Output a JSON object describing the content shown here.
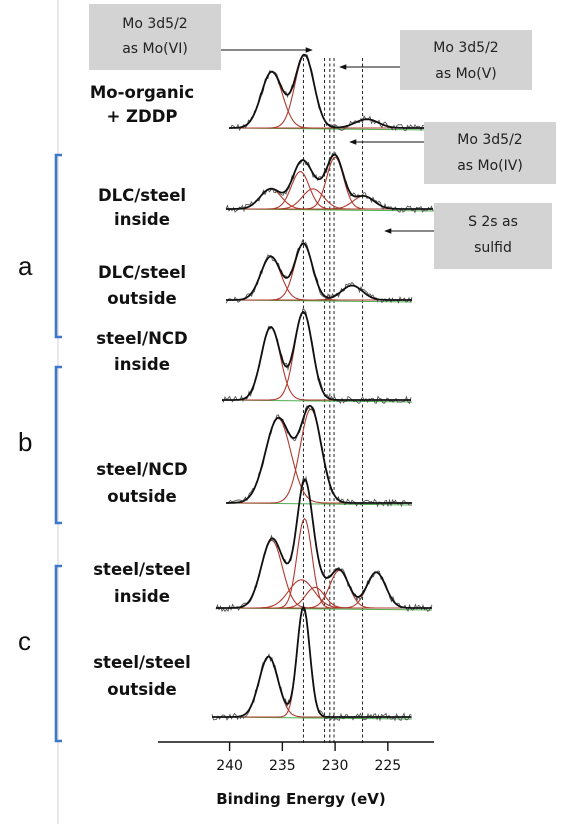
{
  "chart_data": {
    "type": "line",
    "title": "",
    "xlabel": "Binding Energy (eV)",
    "ylabel": "",
    "xlim": [
      245,
      223
    ],
    "x_reversed": true,
    "x_ticks": [
      240,
      235,
      230,
      225
    ],
    "x_tick_labels": [
      "240",
      "235",
      "230",
      "225"
    ],
    "grid": false,
    "colors": {
      "measured": "#111111",
      "component": "#b03a2e",
      "baseline": "#4caf50",
      "bracket": "#3d78c9",
      "annotation_box": "#d3d3d3"
    },
    "reference_lines": [
      233.0,
      231.0,
      230.5,
      230.1,
      227.4
    ],
    "annotations": [
      {
        "lines": [
          "Mo 3d5/2",
          "as Mo(VI)"
        ],
        "points_to": 233.0
      },
      {
        "lines": [
          "Mo 3d5/2",
          "as Mo(V)"
        ],
        "points_to": 230.5
      },
      {
        "lines": [
          "Mo 3d5/2",
          "as Mo(IV)"
        ],
        "points_to": 230.1
      },
      {
        "lines": [
          "S 2s as",
          "sulfid"
        ],
        "points_to": 227.4
      }
    ],
    "groups": [
      {
        "label": "a",
        "spectra": [
          1,
          2
        ]
      },
      {
        "label": "b",
        "spectra": [
          3,
          4
        ]
      },
      {
        "label": "c",
        "spectra": [
          5,
          6
        ]
      }
    ],
    "spectra": [
      {
        "lines": [
          "Mo-organic",
          "+ ZDDP"
        ],
        "peaks": [
          [
            236.0,
            0.77,
            1.0
          ],
          [
            232.9,
            1.0,
            0.9
          ],
          [
            227.0,
            0.12,
            1.1
          ]
        ]
      },
      {
        "lines": [
          "DLC/steel",
          "inside"
        ],
        "peaks": [
          [
            236.1,
            0.28,
            1.0
          ],
          [
            233.3,
            0.52,
            0.85
          ],
          [
            232.1,
            0.28,
            1.0
          ],
          [
            230.0,
            0.72,
            0.8
          ],
          [
            227.3,
            0.18,
            1.0
          ]
        ]
      },
      {
        "lines": [
          "DLC/steel",
          "outside"
        ],
        "peaks": [
          [
            236.1,
            0.75,
            0.95
          ],
          [
            233.0,
            0.97,
            0.85
          ],
          [
            228.4,
            0.25,
            1.0
          ]
        ]
      },
      {
        "lines": [
          "steel/NCD",
          "inside"
        ],
        "peaks": [
          [
            236.1,
            0.83,
            0.9
          ],
          [
            233.0,
            1.0,
            0.85
          ]
        ]
      },
      {
        "lines": [
          "steel/NCD",
          "outside"
        ],
        "peaks": [
          [
            235.4,
            0.9,
            1.2
          ],
          [
            232.3,
            1.0,
            1.0
          ]
        ]
      },
      {
        "lines": [
          "steel/steel",
          "inside"
        ],
        "peaks": [
          [
            236.0,
            0.72,
            1.0
          ],
          [
            232.9,
            0.95,
            0.7
          ],
          [
            233.2,
            0.3,
            1.2
          ],
          [
            231.9,
            0.22,
            0.9
          ],
          [
            229.6,
            0.4,
            0.9
          ],
          [
            226.1,
            0.38,
            0.9
          ]
        ]
      },
      {
        "lines": [
          "steel/steel",
          "outside"
        ],
        "peaks": [
          [
            236.3,
            0.55,
            0.9
          ],
          [
            233.0,
            1.0,
            0.6
          ]
        ]
      }
    ]
  }
}
